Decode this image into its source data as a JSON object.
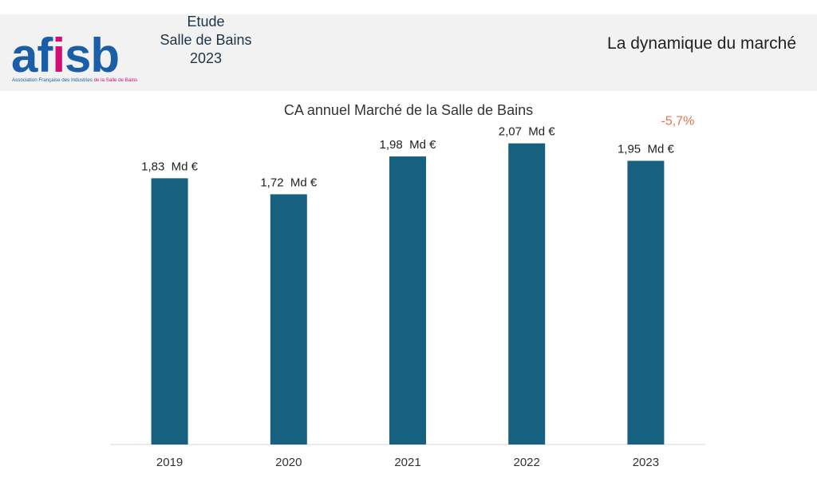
{
  "header": {
    "logo_text": "afisb",
    "logo_tagline_part1": "Association Française des Industries",
    "logo_tagline_part2": "de la Salle de Bains",
    "study_line1": "Etude",
    "study_line2": "Salle de Bains",
    "study_line3": "2023",
    "section_title": "La dynamique du marché"
  },
  "colors": {
    "bar": "#17607f",
    "logo_blue": "#1a5ea8",
    "logo_pink": "#d10e73",
    "change_label": "#e8714a"
  },
  "chart_data": {
    "type": "bar",
    "title": "CA annuel Marché de la Salle de Bains",
    "categories": [
      "2019",
      "2020",
      "2021",
      "2022",
      "2023"
    ],
    "values": [
      1.83,
      1.72,
      1.98,
      2.07,
      1.95
    ],
    "data_labels": [
      "1,83  Md €",
      "1,72  Md €",
      "1,98  Md €",
      "2,07  Md €",
      "1,95  Md €"
    ],
    "unit": "Md €",
    "ylim": [
      0,
      2.43
    ],
    "grid": false,
    "legend": "none",
    "annotation": {
      "text": "-5,7%",
      "category": "2023"
    }
  }
}
